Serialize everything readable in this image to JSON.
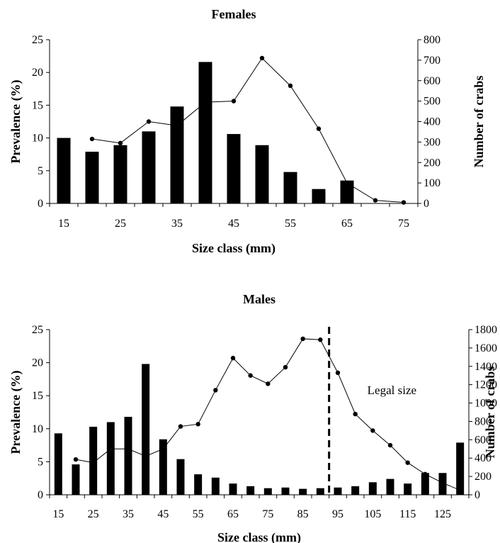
{
  "chart_data": [
    {
      "type": "bar",
      "title": "Females",
      "xlabel": "Size class (mm)",
      "ylabel": "Prevalence (%)",
      "y2label": "Number of crabs",
      "ylim": [
        0,
        25
      ],
      "y2lim": [
        0,
        800
      ],
      "yticks": [
        "0",
        "5",
        "10",
        "15",
        "20",
        "25"
      ],
      "y2ticks": [
        "0",
        "100",
        "200",
        "300",
        "400",
        "500",
        "600",
        "700",
        "800"
      ],
      "categories": [
        "15",
        "20",
        "25",
        "30",
        "35",
        "40",
        "45",
        "50",
        "55",
        "60",
        "65",
        "70",
        "75"
      ],
      "xtick_labels": [
        "15",
        "25",
        "35",
        "45",
        "55",
        "65",
        "75"
      ],
      "series": [
        {
          "kind": "bar",
          "axis": "left",
          "values": [
            10.0,
            7.9,
            8.9,
            11.0,
            14.8,
            21.6,
            10.6,
            8.9,
            4.8,
            2.2,
            3.5,
            null,
            null
          ]
        },
        {
          "kind": "line",
          "axis": "right",
          "values": [
            null,
            315,
            295,
            400,
            380,
            495,
            500,
            710,
            575,
            365,
            100,
            15,
            5
          ]
        }
      ],
      "annotations": []
    },
    {
      "type": "bar",
      "title": "Males",
      "xlabel": "Size class (mm)",
      "ylabel": "Prevalence (%)",
      "y2label": "Number of crabs",
      "ylim": [
        0,
        25
      ],
      "y2lim": [
        0,
        1800
      ],
      "yticks": [
        "0",
        "5",
        "10",
        "15",
        "20",
        "25"
      ],
      "y2ticks": [
        "0",
        "200",
        "400",
        "600",
        "800",
        "1000",
        "1200",
        "1400",
        "1600",
        "1800"
      ],
      "categories": [
        "15",
        "20",
        "25",
        "30",
        "35",
        "40",
        "45",
        "50",
        "55",
        "60",
        "65",
        "70",
        "75",
        "80",
        "85",
        "90",
        "95",
        "100",
        "105",
        "110",
        "115",
        "120",
        "125",
        "130"
      ],
      "xtick_labels": [
        "15",
        "25",
        "35",
        "45",
        "55",
        "65",
        "75",
        "85",
        "95",
        "105",
        "115",
        "125"
      ],
      "series": [
        {
          "kind": "bar",
          "axis": "left",
          "values": [
            9.3,
            4.6,
            10.3,
            11.0,
            11.8,
            19.8,
            8.4,
            5.4,
            3.1,
            2.6,
            1.7,
            1.3,
            1.0,
            1.1,
            0.9,
            1.0,
            1.1,
            1.3,
            1.9,
            2.4,
            1.7,
            3.3,
            3.3,
            7.9
          ]
        },
        {
          "kind": "line",
          "axis": "right",
          "values": [
            null,
            385,
            350,
            500,
            500,
            420,
            500,
            745,
            770,
            1140,
            1490,
            1300,
            1210,
            1390,
            1700,
            1690,
            1330,
            880,
            700,
            540,
            350,
            225,
            130,
            50
          ]
        }
      ],
      "annotations": [
        {
          "type": "vline",
          "x": 92.5,
          "label": "Legal size"
        }
      ]
    }
  ]
}
